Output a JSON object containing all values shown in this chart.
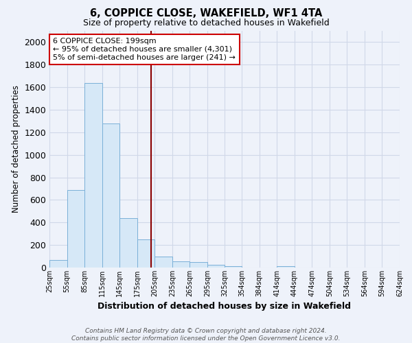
{
  "title": "6, COPPICE CLOSE, WAKEFIELD, WF1 4TA",
  "subtitle": "Size of property relative to detached houses in Wakefield",
  "xlabel": "Distribution of detached houses by size in Wakefield",
  "ylabel": "Number of detached properties",
  "bar_color": "#d6e8f7",
  "bar_edge_color": "#7ab0d8",
  "bin_edges": [
    25,
    55,
    85,
    115,
    145,
    175,
    205,
    235,
    265,
    295,
    325,
    354,
    384,
    414,
    444,
    474,
    504,
    534,
    564,
    594,
    624
  ],
  "bar_heights": [
    70,
    690,
    1640,
    1280,
    440,
    250,
    100,
    55,
    50,
    25,
    15,
    0,
    0,
    15,
    0,
    0,
    0,
    0,
    0,
    0
  ],
  "vline_x": 199,
  "vline_color": "#8b0000",
  "ylim": [
    0,
    2100
  ],
  "yticks": [
    0,
    200,
    400,
    600,
    800,
    1000,
    1200,
    1400,
    1600,
    1800,
    2000
  ],
  "annotation_text": "6 COPPICE CLOSE: 199sqm\n← 95% of detached houses are smaller (4,301)\n5% of semi-detached houses are larger (241) →",
  "annotation_box_color": "#ffffff",
  "annotation_border_color": "#cc0000",
  "footer_text": "Contains HM Land Registry data © Crown copyright and database right 2024.\nContains public sector information licensed under the Open Government Licence v3.0.",
  "background_color": "#eef2fa",
  "grid_color": "#d0d8e8",
  "tick_labels": [
    "25sqm",
    "55sqm",
    "85sqm",
    "115sqm",
    "145sqm",
    "175sqm",
    "205sqm",
    "235sqm",
    "265sqm",
    "295sqm",
    "325sqm",
    "354sqm",
    "384sqm",
    "414sqm",
    "444sqm",
    "474sqm",
    "504sqm",
    "534sqm",
    "564sqm",
    "594sqm",
    "624sqm"
  ]
}
